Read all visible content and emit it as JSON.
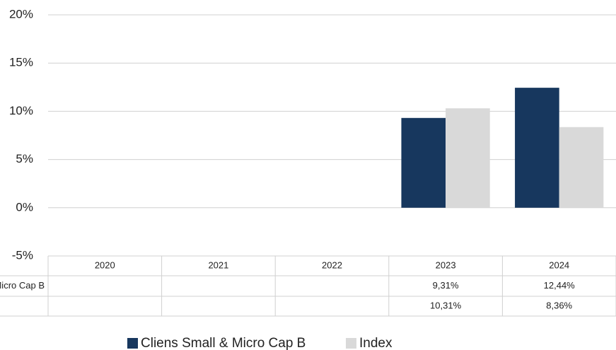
{
  "chart_data": {
    "type": "bar",
    "categories": [
      "2020",
      "2021",
      "2022",
      "2023",
      "2024"
    ],
    "series": [
      {
        "name": "Cliens Small & Micro Cap B",
        "color": "#17375e",
        "values": [
          null,
          null,
          null,
          9.31,
          12.44
        ],
        "value_labels": [
          null,
          null,
          null,
          "9,31%",
          "12,44%"
        ]
      },
      {
        "name": "Index",
        "color": "#d9d9d9",
        "values": [
          null,
          null,
          null,
          10.31,
          8.36
        ],
        "value_labels": [
          null,
          null,
          null,
          "10,31%",
          "8,36%"
        ]
      }
    ],
    "ylim": [
      -5,
      20
    ],
    "yticks": [
      {
        "value": -5,
        "label": "-5%"
      },
      {
        "value": 0,
        "label": "0%"
      },
      {
        "value": 5,
        "label": "5%"
      },
      {
        "value": 10,
        "label": "10%"
      },
      {
        "value": 15,
        "label": "15%"
      },
      {
        "value": 20,
        "label": "20%"
      }
    ],
    "grid": true
  }
}
